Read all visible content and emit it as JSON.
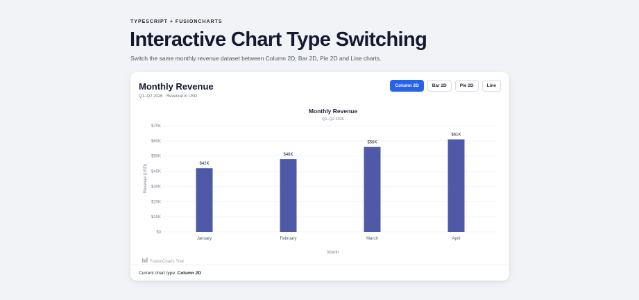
{
  "header": {
    "eyebrow": "TYPESCRIPT + FUSIONCHARTS",
    "title": "Interactive Chart Type Switching",
    "subtitle": "Switch the same monthly revenue dataset between Column 2D, Bar 2D, Pie 2D and Line charts."
  },
  "card": {
    "title": "Monthly Revenue",
    "meta": "Q1–Q2 2026 · Revenue in USD",
    "buttons": [
      {
        "label": "Column 2D",
        "active": true
      },
      {
        "label": "Bar 2D",
        "active": false
      },
      {
        "label": "Pie 2D",
        "active": false
      },
      {
        "label": "Line",
        "active": false
      }
    ],
    "watermark": "FusionCharts Trial",
    "footer_label": "Current chart type:",
    "footer_value": "Column 2D"
  },
  "colors": {
    "bar": "#4e5aa8",
    "accent": "#2563eb"
  },
  "chart_data": {
    "type": "bar",
    "title": "Monthly Revenue",
    "subtitle": "Q1–Q2 2026",
    "xlabel": "Month",
    "ylabel": "Revenue (USD)",
    "categories": [
      "January",
      "February",
      "March",
      "April"
    ],
    "values": [
      42000,
      48000,
      56000,
      61000
    ],
    "data_labels": [
      "$42K",
      "$48K",
      "$56K",
      "$61K"
    ],
    "ylim": [
      0,
      70000
    ],
    "yticks": [
      0,
      10000,
      20000,
      30000,
      40000,
      50000,
      60000,
      70000
    ],
    "ytick_labels": [
      "$0",
      "$10K",
      "$20K",
      "$30K",
      "$40K",
      "$50K",
      "$60K",
      "$70K"
    ],
    "grid": true
  }
}
